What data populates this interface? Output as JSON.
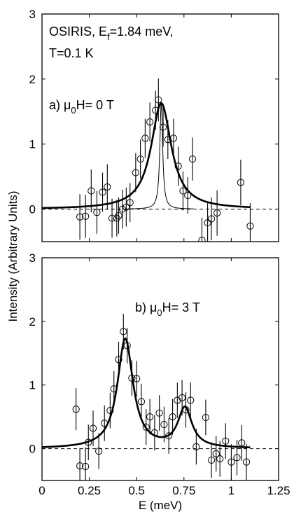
{
  "figure": {
    "ylabel": "Intensity (Arbitrary Units)",
    "xlabel": "E (meV)"
  },
  "chart_data": [
    {
      "type": "scatter",
      "panel": "top",
      "annotation_lines": [
        "OSIRIS, E",
        "f",
        "=1.84 meV,",
        "T=0.1 K"
      ],
      "label_prefix": "a) ",
      "label_mu": "μ",
      "label_sub": "0",
      "label_rest": "H= 0 T",
      "xlim": [
        0,
        1.25
      ],
      "ylim": [
        -0.5,
        3
      ],
      "yticks": [
        0,
        1,
        2,
        3
      ],
      "xticks": [
        0,
        0.25,
        0.5,
        0.75,
        1,
        1.25
      ],
      "series": [
        {
          "type": "scatter_errorbar",
          "points": [
            {
              "x": 0.2,
              "y": -0.12,
              "err": 0.35
            },
            {
              "x": 0.23,
              "y": -0.11,
              "err": 0.33
            },
            {
              "x": 0.26,
              "y": 0.28,
              "err": 0.33
            },
            {
              "x": 0.29,
              "y": -0.05,
              "err": 0.33
            },
            {
              "x": 0.32,
              "y": 0.26,
              "err": 0.3
            },
            {
              "x": 0.345,
              "y": 0.34,
              "err": 0.35
            },
            {
              "x": 0.37,
              "y": -0.14,
              "err": 0.3
            },
            {
              "x": 0.395,
              "y": -0.14,
              "err": 0.28
            },
            {
              "x": 0.405,
              "y": -0.1,
              "err": 0.28
            },
            {
              "x": 0.425,
              "y": 0.0,
              "err": 0.3
            },
            {
              "x": 0.445,
              "y": 0.03,
              "err": 0.3
            },
            {
              "x": 0.465,
              "y": 0.1,
              "err": 0.3
            },
            {
              "x": 0.495,
              "y": 0.56,
              "err": 0.3
            },
            {
              "x": 0.52,
              "y": 0.77,
              "err": 0.3
            },
            {
              "x": 0.545,
              "y": 1.09,
              "err": 0.3
            },
            {
              "x": 0.57,
              "y": 1.34,
              "err": 0.3
            },
            {
              "x": 0.6,
              "y": 1.52,
              "err": 0.3
            },
            {
              "x": 0.615,
              "y": 1.68,
              "err": 0.33
            },
            {
              "x": 0.64,
              "y": 1.26,
              "err": 0.3
            },
            {
              "x": 0.665,
              "y": 1.07,
              "err": 0.3
            },
            {
              "x": 0.695,
              "y": 1.09,
              "err": 0.3
            },
            {
              "x": 0.72,
              "y": 0.66,
              "err": 0.3
            },
            {
              "x": 0.745,
              "y": 0.28,
              "err": 0.3
            },
            {
              "x": 0.77,
              "y": 0.21,
              "err": 0.28
            },
            {
              "x": 0.795,
              "y": 0.77,
              "err": 0.33
            },
            {
              "x": 0.845,
              "y": -0.48,
              "err": 0.35
            },
            {
              "x": 0.875,
              "y": -0.21,
              "err": 0.33
            },
            {
              "x": 0.895,
              "y": -0.15,
              "err": 0.33
            },
            {
              "x": 0.925,
              "y": -0.06,
              "err": 0.35
            },
            {
              "x": 1.05,
              "y": 0.41,
              "err": 0.35
            },
            {
              "x": 1.1,
              "y": -0.26,
              "err": 0.35
            }
          ]
        },
        {
          "type": "fit_line",
          "model": "lorentzian",
          "center": 0.63,
          "hwhm": 0.065,
          "amp": 1.63,
          "offset": 0.0,
          "xrange": [
            0,
            1.1
          ],
          "stroke_width": 2.6
        },
        {
          "type": "fit_line",
          "model": "lorentzian",
          "center": 0.63,
          "hwhm": 0.009,
          "amp": 1.63,
          "offset": 0.0,
          "xrange": [
            0.45,
            0.8
          ],
          "stroke_width": 1
        }
      ]
    },
    {
      "type": "scatter",
      "panel": "bottom",
      "label_prefix": "b) ",
      "label_mu": "μ",
      "label_sub": "0",
      "label_rest": "H= 3 T",
      "xlim": [
        0,
        1.25
      ],
      "ylim": [
        -0.5,
        3
      ],
      "yticks": [
        0,
        1,
        2,
        3
      ],
      "xticks": [
        0,
        0.25,
        0.5,
        0.75,
        1,
        1.25
      ],
      "xticklabels": [
        "0",
        "0.25",
        "0.5",
        "0.75",
        "1",
        "1.25"
      ],
      "series": [
        {
          "type": "scatter_errorbar",
          "points": [
            {
              "x": 0.18,
              "y": 0.62,
              "err": 0.33
            },
            {
              "x": 0.2,
              "y": -0.27,
              "err": 0.28
            },
            {
              "x": 0.23,
              "y": -0.28,
              "err": 0.3
            },
            {
              "x": 0.245,
              "y": 0.1,
              "err": 0.28
            },
            {
              "x": 0.27,
              "y": 0.32,
              "err": 0.28
            },
            {
              "x": 0.3,
              "y": -0.04,
              "err": 0.28
            },
            {
              "x": 0.33,
              "y": 0.4,
              "err": 0.28
            },
            {
              "x": 0.36,
              "y": 0.6,
              "err": 0.28
            },
            {
              "x": 0.38,
              "y": 0.94,
              "err": 0.28
            },
            {
              "x": 0.405,
              "y": 1.4,
              "err": 0.28
            },
            {
              "x": 0.43,
              "y": 1.84,
              "err": 0.28
            },
            {
              "x": 0.45,
              "y": 1.62,
              "err": 0.28
            },
            {
              "x": 0.475,
              "y": 1.11,
              "err": 0.28
            },
            {
              "x": 0.5,
              "y": 1.1,
              "err": 0.28
            },
            {
              "x": 0.525,
              "y": 0.74,
              "err": 0.28
            },
            {
              "x": 0.55,
              "y": 0.34,
              "err": 0.28
            },
            {
              "x": 0.57,
              "y": 0.5,
              "err": 0.28
            },
            {
              "x": 0.595,
              "y": 0.25,
              "err": 0.28
            },
            {
              "x": 0.62,
              "y": 0.56,
              "err": 0.28
            },
            {
              "x": 0.645,
              "y": 0.38,
              "err": 0.28
            },
            {
              "x": 0.67,
              "y": 0.2,
              "err": 0.28
            },
            {
              "x": 0.69,
              "y": 0.5,
              "err": 0.28
            },
            {
              "x": 0.715,
              "y": 0.76,
              "err": 0.28
            },
            {
              "x": 0.74,
              "y": 0.8,
              "err": 0.28
            },
            {
              "x": 0.76,
              "y": 0.61,
              "err": 0.28
            },
            {
              "x": 0.785,
              "y": 0.76,
              "err": 0.28
            },
            {
              "x": 0.815,
              "y": 0.03,
              "err": 0.28
            },
            {
              "x": 0.865,
              "y": 0.49,
              "err": 0.28
            },
            {
              "x": 0.895,
              "y": -0.18,
              "err": 0.28
            },
            {
              "x": 0.92,
              "y": -0.08,
              "err": 0.28
            },
            {
              "x": 0.94,
              "y": -0.16,
              "err": 0.28
            },
            {
              "x": 0.97,
              "y": 0.12,
              "err": 0.28
            },
            {
              "x": 1.0,
              "y": -0.21,
              "err": 0.28
            },
            {
              "x": 1.03,
              "y": -0.14,
              "err": 0.28
            },
            {
              "x": 1.055,
              "y": 0.09,
              "err": 0.28
            },
            {
              "x": 1.08,
              "y": -0.21,
              "err": 0.28
            }
          ]
        },
        {
          "type": "fit_line",
          "model": "double_lorentzian",
          "peaks": [
            {
              "center": 0.44,
              "hwhm": 0.05,
              "amp": 1.72
            },
            {
              "center": 0.755,
              "hwhm": 0.045,
              "amp": 0.62
            }
          ],
          "offset": 0.0,
          "xrange": [
            0,
            1.1
          ],
          "stroke_width": 2.6
        }
      ]
    }
  ]
}
